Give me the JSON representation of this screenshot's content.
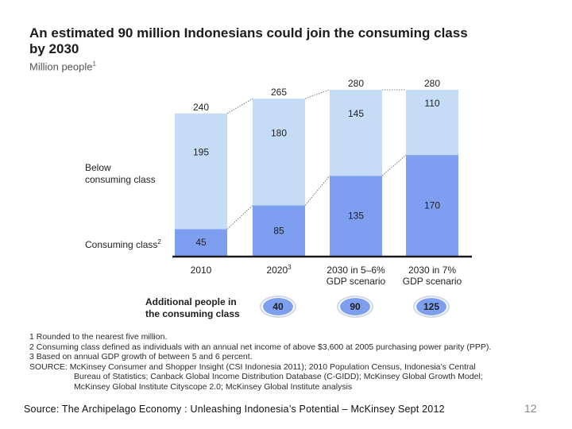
{
  "title_line1": "An estimated 90 million Indonesians could join the consuming class",
  "title_line2": "by 2030",
  "subtitle": "Million people",
  "subtitle_sup": "1",
  "row_labels": {
    "below_line1": "Below",
    "below_line2": "consuming class",
    "consuming": "Consuming class",
    "consuming_sup": "2"
  },
  "additional": {
    "label_line1": "Additional people in",
    "label_line2": "the consuming class"
  },
  "colors": {
    "below": "#c5dcf7",
    "consuming": "#7e9ef0",
    "bubble": "#7e9ef0",
    "axis": "#1a1a1a"
  },
  "chart_data": {
    "type": "bar",
    "stacked": true,
    "categories": [
      {
        "line1": "2010",
        "line2": "",
        "sup": ""
      },
      {
        "line1": "2020",
        "line2": "",
        "sup": "3"
      },
      {
        "line1": "2030 in 5–6%",
        "line2": "GDP scenario",
        "sup": ""
      },
      {
        "line1": "2030 in 7%",
        "line2": "GDP scenario",
        "sup": ""
      }
    ],
    "series": [
      {
        "name": "Consuming class",
        "values": [
          45,
          85,
          135,
          170
        ]
      },
      {
        "name": "Below consuming class",
        "values": [
          195,
          180,
          145,
          110
        ]
      }
    ],
    "totals": [
      240,
      265,
      280,
      280
    ],
    "additional_people": [
      40,
      90,
      125
    ],
    "ylim": [
      0,
      280
    ]
  },
  "footnotes": [
    "1  Rounded to the nearest five million.",
    "2  Consuming class defined as individuals with an annual net income of above $3,600 at 2005 purchasing power parity (PPP).",
    "3  Based on annual GDP growth of between 5 and 6 percent.",
    "SOURCE: McKinsey Consumer and Shopper Insight (CSI Indonesia 2011); 2010 Population Census, Indonesia’s Central",
    "Bureau of Statistics; Canback Global Income Distribution Database (C-GIDD); McKinsey Global Growth Model;",
    "McKinsey Global Institute Cityscope 2.0; McKinsey Global Institute analysis"
  ],
  "source_line": "Source: The Archipelago Economy : Unleashing Indonesia’s Potential – McKinsey Sept 2012",
  "page_number": "12"
}
